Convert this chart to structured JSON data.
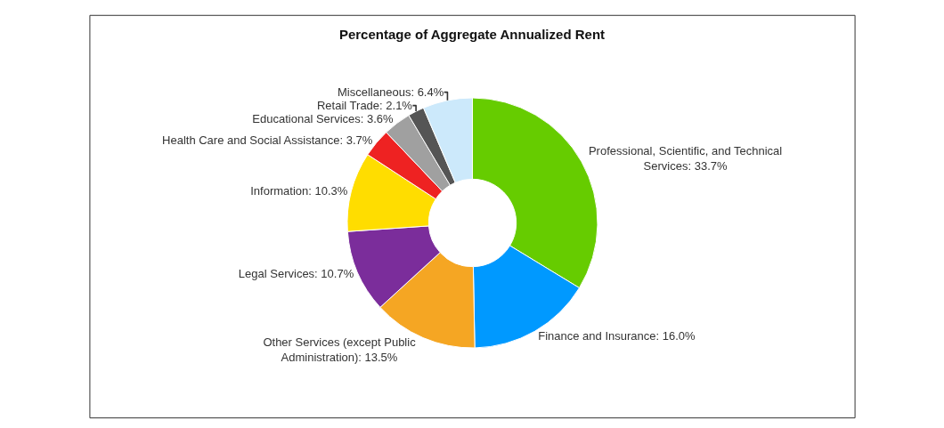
{
  "chart_data": {
    "type": "donut",
    "title": "Percentage of Aggregate Annualized Rent",
    "categories": [
      "Professional, Scientific, and Technical Services",
      "Finance and Insurance",
      "Other Services (except Public Administration)",
      "Legal Services",
      "Information",
      "Health Care and Social Assistance",
      "Educational Services",
      "Retail Trade",
      "Miscellaneous"
    ],
    "values": [
      33.7,
      16.0,
      13.5,
      10.7,
      10.3,
      3.7,
      3.6,
      2.1,
      6.4
    ],
    "value_labels": [
      "33.7%",
      "16.0%",
      "13.5%",
      "10.7%",
      "10.3%",
      "3.7%",
      "3.6%",
      "2.1%",
      "6.4%"
    ],
    "colors": [
      "#66cc00",
      "#0099ff",
      "#f5a623",
      "#7b2d9b",
      "#ffdd00",
      "#ee2222",
      "#a0a0a0",
      "#555555",
      "#cce9fb"
    ],
    "legend": false
  }
}
